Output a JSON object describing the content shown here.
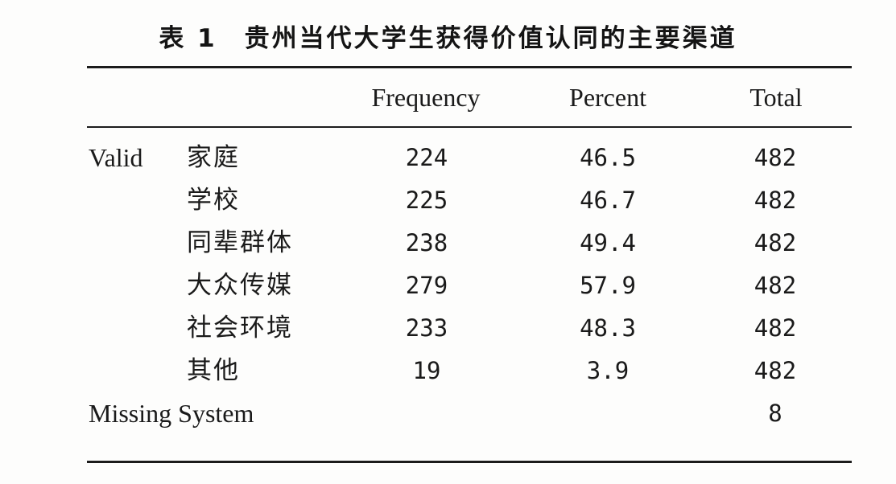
{
  "title": "表 1　贵州当代大学生获得价值认同的主要渠道",
  "columns": {
    "frequency": "Frequency",
    "percent": "Percent",
    "total": "Total"
  },
  "group_label": "Valid",
  "rows": [
    {
      "category": "家庭",
      "frequency": "224",
      "percent": "46.5",
      "total": "482"
    },
    {
      "category": "学校",
      "frequency": "225",
      "percent": "46.7",
      "total": "482"
    },
    {
      "category": "同辈群体",
      "frequency": "238",
      "percent": "49.4",
      "total": "482"
    },
    {
      "category": "大众传媒",
      "frequency": "279",
      "percent": "57.9",
      "total": "482"
    },
    {
      "category": "社会环境",
      "frequency": "233",
      "percent": "48.3",
      "total": "482"
    },
    {
      "category": "其他",
      "frequency": "19",
      "percent": "3.9",
      "total": "482"
    }
  ],
  "missing": {
    "label": "Missing System",
    "total": "8"
  }
}
